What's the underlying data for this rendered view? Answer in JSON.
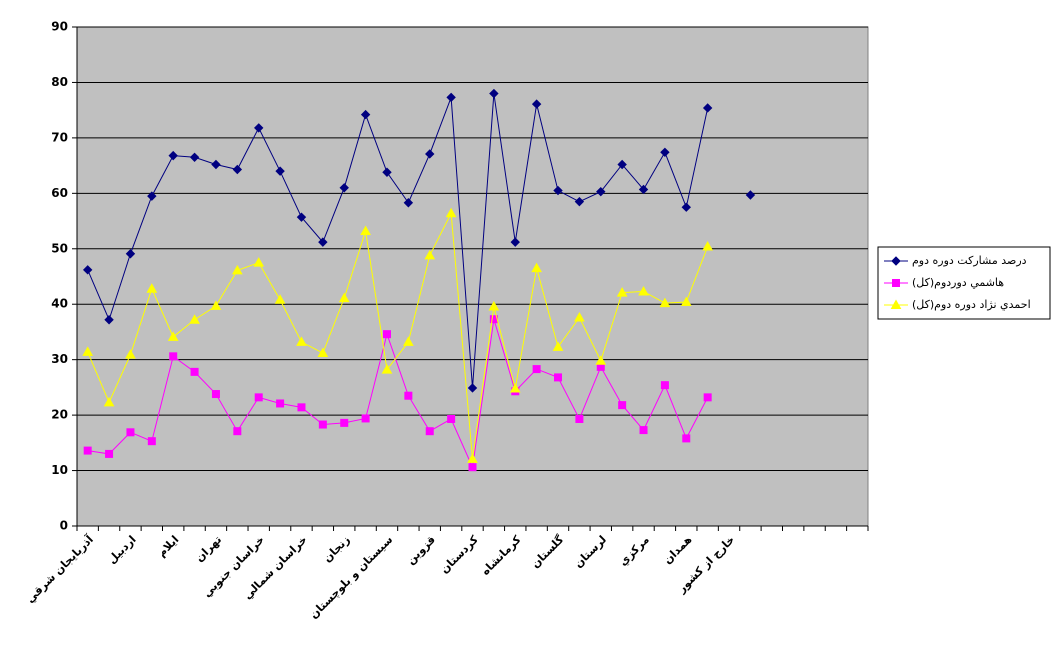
{
  "chart_data": {
    "type": "line",
    "categories": [
      "آذربايجان شرقي",
      null,
      "اردبيل",
      null,
      "ايلام",
      null,
      "تهران",
      null,
      "خراسان جنوبي",
      null,
      "خراسان شمالي",
      null,
      "زنجان",
      null,
      "سيستان و بلوچستان",
      null,
      "قزوين",
      null,
      "كردستان",
      null,
      "كرمانشاه",
      null,
      "گلستان",
      null,
      "لرستان",
      null,
      "مركزي",
      null,
      "همدان",
      null,
      "خارج از كشور",
      null,
      null,
      null,
      null,
      null,
      null
    ],
    "series": [
      {
        "name": "درصد مشاركت دوره دوم",
        "color": "#000080",
        "marker": "diamond",
        "values": [
          46.2,
          37.2,
          49.1,
          59.5,
          66.8,
          66.5,
          65.2,
          64.3,
          71.8,
          64.0,
          55.7,
          51.2,
          61.0,
          74.2,
          63.8,
          58.3,
          67.1,
          77.3,
          24.9,
          78.0,
          51.2,
          76.1,
          60.5,
          58.5,
          60.3,
          65.2,
          60.7,
          67.4,
          57.5,
          75.4,
          null,
          59.7,
          null,
          null,
          null,
          null,
          null
        ]
      },
      {
        "name": "هاشمي دوردوم(كل)",
        "color": "#ff00ff",
        "marker": "square",
        "values": [
          13.6,
          13.0,
          16.9,
          15.3,
          30.6,
          27.8,
          23.8,
          17.1,
          23.2,
          22.1,
          21.4,
          18.3,
          18.6,
          19.4,
          34.6,
          23.5,
          17.1,
          19.3,
          10.6,
          37.3,
          24.3,
          28.3,
          26.8,
          19.3,
          28.7,
          21.8,
          17.3,
          25.4,
          15.8,
          23.2,
          null,
          null,
          null,
          null,
          null,
          null,
          null
        ]
      },
      {
        "name": "احمدي نژاد دوره دوم(كل)",
        "color": "#ffff00",
        "marker": "triangle",
        "values": [
          31.4,
          22.3,
          30.9,
          42.8,
          34.1,
          37.2,
          39.7,
          46.1,
          47.5,
          40.8,
          33.2,
          31.2,
          41.1,
          53.2,
          28.2,
          33.2,
          48.8,
          56.4,
          12.1,
          39.6,
          24.8,
          46.5,
          32.3,
          37.6,
          29.8,
          42.1,
          42.3,
          40.2,
          40.4,
          50.4,
          null,
          null,
          null,
          null,
          null,
          null,
          null
        ]
      }
    ],
    "ylim": [
      0,
      90
    ],
    "yticks": [
      0,
      10,
      20,
      30,
      40,
      50,
      60,
      70,
      80,
      90
    ],
    "grid": true,
    "legend": "right"
  }
}
